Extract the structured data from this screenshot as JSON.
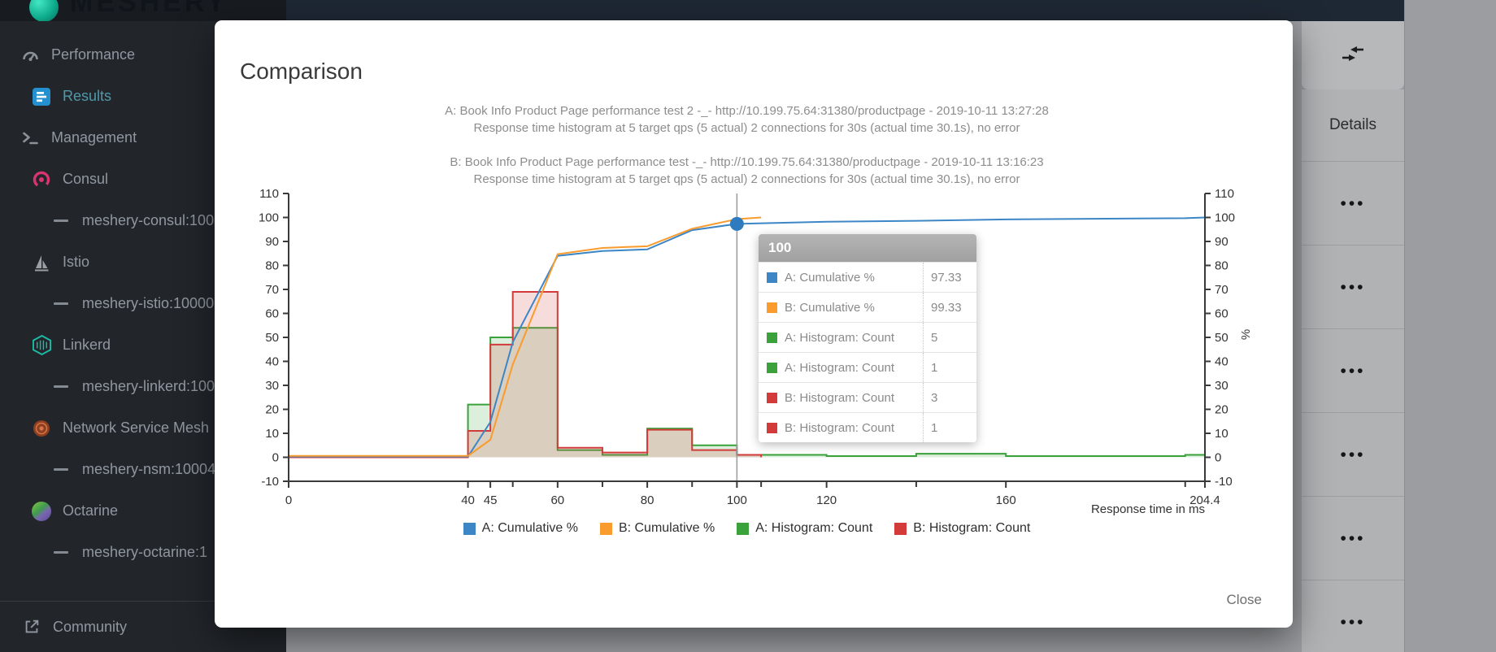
{
  "app": {
    "logo_text": "MESHERY"
  },
  "sidebar": {
    "items": [
      {
        "label": "Performance",
        "icon": "gauge-icon",
        "level": 1,
        "active": false
      },
      {
        "label": "Results",
        "icon": "results-icon",
        "level": 2,
        "active": true
      },
      {
        "label": "Management",
        "icon": "terminal-icon",
        "level": 1,
        "active": false
      },
      {
        "label": "Consul",
        "icon": "consul-icon",
        "level": 2,
        "active": false
      },
      {
        "label": "meshery-consul:100",
        "icon": "dash-icon",
        "level": 3,
        "active": false
      },
      {
        "label": "Istio",
        "icon": "istio-icon",
        "level": 2,
        "active": false
      },
      {
        "label": "meshery-istio:10000",
        "icon": "dash-icon",
        "level": 3,
        "active": false
      },
      {
        "label": "Linkerd",
        "icon": "linkerd-icon",
        "level": 2,
        "active": false
      },
      {
        "label": "meshery-linkerd:100",
        "icon": "dash-icon",
        "level": 3,
        "active": false
      },
      {
        "label": "Network Service Mesh",
        "icon": "nsm-icon",
        "level": 2,
        "active": false
      },
      {
        "label": "meshery-nsm:10004",
        "icon": "dash-icon",
        "level": 3,
        "active": false
      },
      {
        "label": "Octarine",
        "icon": "octarine-icon",
        "level": 2,
        "active": false
      },
      {
        "label": "meshery-octarine:1",
        "icon": "dash-icon",
        "level": 3,
        "active": false
      }
    ],
    "footer_item": {
      "label": "Community",
      "icon": "external-link-icon"
    }
  },
  "modal": {
    "title": "Comparison",
    "close_label": "Close"
  },
  "details_panel": {
    "header": "Details",
    "action_label": "•••",
    "row_count": 6
  },
  "tooltip": {
    "header": "100",
    "rows": [
      {
        "color": "#3c86c5",
        "label": "A: Cumulative %",
        "value": "97.33"
      },
      {
        "color": "#f99b2d",
        "label": "B: Cumulative %",
        "value": "99.33"
      },
      {
        "color": "#3ba13b",
        "label": "A: Histogram: Count",
        "value": "5"
      },
      {
        "color": "#3ba13b",
        "label": "A: Histogram: Count",
        "value": "1"
      },
      {
        "color": "#d33b3b",
        "label": "B: Histogram: Count",
        "value": "3"
      },
      {
        "color": "#d33b3b",
        "label": "B: Histogram: Count",
        "value": "1"
      }
    ]
  },
  "chart_data": {
    "type": "histogram+line",
    "titles": [
      "A: Book Info Product Page performance test 2 -_- http://10.199.75.64:31380/productpage - 2019-10-11 13:27:28",
      "Response time histogram at 5 target qps (5 actual) 2 connections for 30s (actual time 30.1s), no error",
      "B: Book Info Product Page performance test -_- http://10.199.75.64:31380/productpage - 2019-10-11 13:16:23",
      "Response time histogram at 5 target qps (5 actual) 2 connections for 30s (actual time 30.1s), no error"
    ],
    "xlabel": "Response time in ms",
    "ylabel_right": "%",
    "xlim": [
      0,
      204.4
    ],
    "ylim": [
      -10,
      110
    ],
    "y_tick_step": 10,
    "x_ticks_labeled": [
      0,
      40,
      45,
      60,
      80,
      100,
      120,
      160,
      204.4
    ],
    "x_ticks_minor": [
      50,
      70,
      90,
      105.4,
      140,
      200
    ],
    "grid": false,
    "legend_position": "bottom",
    "crosshair_x": 100,
    "marker": {
      "x": 100,
      "y": 97.33,
      "color": "#2e7cbe"
    },
    "series": [
      {
        "name": "A: Cumulative %",
        "type": "line",
        "color": "#3c86c5",
        "points": [
          [
            0,
            0.3
          ],
          [
            40,
            0.3
          ],
          [
            45,
            14.7
          ],
          [
            50,
            48
          ],
          [
            60,
            84
          ],
          [
            70,
            86
          ],
          [
            80,
            86.7
          ],
          [
            90,
            94.7
          ],
          [
            100,
            97.33
          ],
          [
            120,
            98.2
          ],
          [
            140,
            98.6
          ],
          [
            160,
            99.2
          ],
          [
            200,
            99.7
          ],
          [
            204.4,
            100
          ]
        ]
      },
      {
        "name": "B: Cumulative %",
        "type": "line",
        "color": "#f99b2d",
        "points": [
          [
            0,
            0.6
          ],
          [
            40,
            0.6
          ],
          [
            45,
            7.3
          ],
          [
            50,
            38.7
          ],
          [
            60,
            84.7
          ],
          [
            70,
            87.3
          ],
          [
            80,
            88
          ],
          [
            90,
            95.3
          ],
          [
            100,
            99.33
          ],
          [
            105.4,
            100
          ]
        ]
      },
      {
        "name": "A: Histogram: Count",
        "type": "histogram",
        "color": "#3ba13b",
        "edges": [
          0,
          40,
          45,
          50,
          60,
          70,
          80,
          90,
          100,
          120,
          140,
          160,
          200,
          204.4
        ],
        "counts": [
          0,
          22,
          50,
          54,
          3,
          1,
          12,
          5,
          1,
          0.5,
          1.5,
          0.5,
          1
        ]
      },
      {
        "name": "B: Histogram: Count",
        "type": "histogram",
        "color": "#d33b3b",
        "edges": [
          0,
          40,
          45,
          50,
          60,
          70,
          80,
          90,
          100,
          105.4
        ],
        "counts": [
          0,
          11,
          47,
          69,
          4,
          2,
          11.5,
          3,
          1
        ]
      }
    ]
  }
}
